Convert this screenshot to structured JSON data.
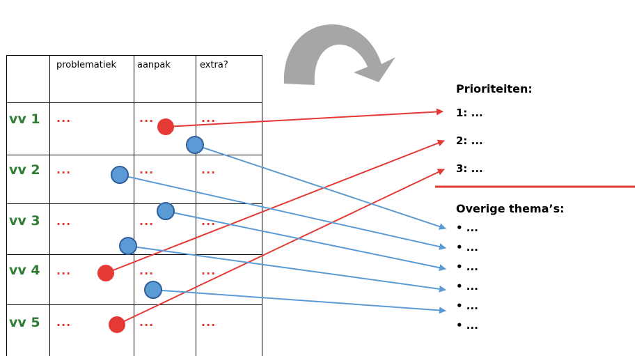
{
  "columns": [
    "problematiek",
    "aanpak",
    "extra?"
  ],
  "rows": [
    {
      "label": "vv 1",
      "cells": [
        "...",
        "...",
        "..."
      ]
    },
    {
      "label": "vv 2",
      "cells": [
        "...",
        "...",
        "..."
      ]
    },
    {
      "label": "vv 3",
      "cells": [
        "...",
        "...",
        "..."
      ]
    },
    {
      "label": "vv 4",
      "cells": [
        "...",
        "...",
        "..."
      ]
    },
    {
      "label": "vv 5",
      "cells": [
        "...",
        "...",
        "..."
      ]
    }
  ],
  "priorities": {
    "title": "Prioriteiten:",
    "items": [
      "1: ...",
      "2: ...",
      "3: ..."
    ]
  },
  "other_themes": {
    "title": "Overige thema’s:",
    "items": [
      "• ...",
      "• ...",
      "• ...",
      "• ...",
      "• ...",
      "• ..."
    ]
  },
  "colors": {
    "priority": "#e53935",
    "other": "#5b9bd5",
    "row_label": "#2e7d32",
    "loop_arrow": "#a6a6a6"
  },
  "icons": [
    "loop-arrow-icon"
  ]
}
